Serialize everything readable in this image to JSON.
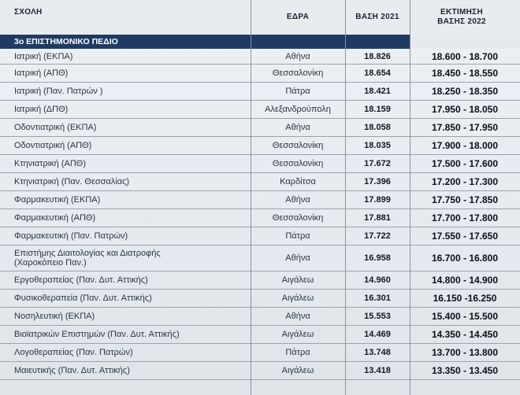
{
  "header": {
    "school": "ΣΧΟΛΗ",
    "seat": "ΕΔΡΑ",
    "base_2021": "ΒΑΣΗ 2021",
    "estimate_line1": "ΕΚΤΙΜΗΣΗ",
    "estimate_line2": "ΒΑΣΗΣ 2022"
  },
  "section_title": "3ο ΕΠΙΣΤΗΜΟΝΙΚΟ ΠΕΔΙΟ",
  "rows": [
    {
      "school": "Ιατρική (ΕΚΠΑ)",
      "seat": "Αθήνα",
      "base": "18.826",
      "estimate": "18.600 - 18.700"
    },
    {
      "school": "Ιατρική (ΑΠΘ)",
      "seat": "Θεσσαλονίκη",
      "base": "18.654",
      "estimate": "18.450 - 18.550"
    },
    {
      "school": "Ιατρική (Παν. Πατρών )",
      "seat": "Πάτρα",
      "base": "18.421",
      "estimate": "18.250 - 18.350"
    },
    {
      "school": "Ιατρική (ΔΠΘ)",
      "seat": "Αλεξανδρούπολη",
      "base": "18.159",
      "estimate": "17.950 - 18.050"
    },
    {
      "school": "Οδοντιατρική (ΕΚΠΑ)",
      "seat": "Αθήνα",
      "base": "18.058",
      "estimate": "17.850 - 17.950"
    },
    {
      "school": "Οδοντιατρική (ΑΠΘ)",
      "seat": "Θεσσαλονίκη",
      "base": "18.035",
      "estimate": "17.900 - 18.000"
    },
    {
      "school": "Κτηνιατρική (ΑΠΘ)",
      "seat": "Θεσσαλονίκη",
      "base": "17.672",
      "estimate": "17.500 - 17.600"
    },
    {
      "school": "Κτηνιατρική (Παν. Θεσσαλίας)",
      "seat": "Καρδίτσα",
      "base": "17.396",
      "estimate": "17.200 - 17.300"
    },
    {
      "school": "Φαρμακευτική (ΕΚΠΑ)",
      "seat": "Αθήνα",
      "base": "17.899",
      "estimate": "17.750 - 17.850"
    },
    {
      "school": "Φαρμακευτική (ΑΠΘ)",
      "seat": "Θεσσαλονίκη",
      "base": "17.881",
      "estimate": "17.700 - 17.800"
    },
    {
      "school": "Φαρμακευτική (Παν. Πατρών)",
      "seat": "Πάτρα",
      "base": "17.722",
      "estimate": "17.550 - 17.650"
    },
    {
      "school": "Επιστήμης Διαιτολογίας και Διατροφής\n(Χαροκόπειο Παν.)",
      "seat": "Αθήνα",
      "base": "16.958",
      "estimate": "16.700 - 16.800"
    },
    {
      "school": "Εργοθεραπείας (Παν. Δυτ. Αττικής)",
      "seat": "Αιγάλεω",
      "base": "14.960",
      "estimate": "14.800 - 14.900"
    },
    {
      "school": "Φυσικοθεραπεία (Παν. Δυτ. Αττικής)",
      "seat": "Αιγάλεω",
      "base": "16.301",
      "estimate": "16.150 -16.250"
    },
    {
      "school": "Νοσηλευτική (ΕΚΠΑ)",
      "seat": "Αθήνα",
      "base": "15.553",
      "estimate": "15.400 - 15.500"
    },
    {
      "school": "Βιοϊατρικών Επιστημών (Παν. Δυτ. Αττικής)",
      "seat": "Αιγάλεω",
      "base": "14.469",
      "estimate": "14.350 - 14.450"
    },
    {
      "school": "Λογοθεραπείας (Παν. Πατρών)",
      "seat": "Πάτρα",
      "base": "13.748",
      "estimate": "13.700 - 13.800"
    },
    {
      "school": "Μαιευτικής (Παν. Δυτ. Αττικής)",
      "seat": "Αιγάλεω",
      "base": "13.418",
      "estimate": "13.350 - 13.450"
    }
  ]
}
